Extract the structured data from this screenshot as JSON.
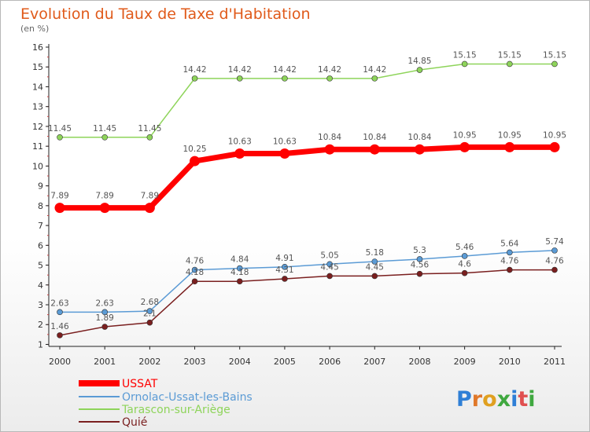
{
  "title": "Evolution du Taux de Taxe d'Habitation",
  "subtitle": "(en %)",
  "brand": {
    "letters": [
      "P",
      "r",
      "o",
      "x",
      "i",
      "t",
      "i"
    ],
    "colors": [
      "#2f7fd6",
      "#e0782a",
      "#e0a020",
      "#3fa83f",
      "#2f7fd6",
      "#e05050",
      "#3fa83f"
    ]
  },
  "chart_data": {
    "type": "line",
    "title": "Evolution du Taux de Taxe d'Habitation",
    "subtitle": "(en %)",
    "xlabel": "",
    "ylabel": "",
    "x": [
      "2000",
      "2001",
      "2002",
      "2003",
      "2004",
      "2005",
      "2006",
      "2007",
      "2008",
      "2009",
      "2010",
      "2011"
    ],
    "yticks": [
      "1",
      "2",
      "3",
      "4",
      "5",
      "6",
      "7",
      "8",
      "9",
      "10",
      "11",
      "12",
      "13",
      "14",
      "15",
      "16"
    ],
    "ylim": [
      0.9,
      16
    ],
    "grid": false,
    "legend_position": "bottom",
    "series": [
      {
        "name": "USSAT",
        "color": "#ff0000",
        "values": [
          7.89,
          7.89,
          7.89,
          10.25,
          10.63,
          10.63,
          10.84,
          10.84,
          10.84,
          10.95,
          10.95,
          10.95
        ],
        "labels": [
          "7.89",
          "7.89",
          "7.89",
          "10.25",
          "10.63",
          "10.63",
          "10.84",
          "10.84",
          "10.84",
          "10.95",
          "10.95",
          "10.95"
        ]
      },
      {
        "name": "Ornolac-Ussat-les-Bains",
        "color": "#5b9bd5",
        "values": [
          2.63,
          2.63,
          2.68,
          4.76,
          4.84,
          4.91,
          5.05,
          5.18,
          5.3,
          5.46,
          5.64,
          5.74
        ],
        "labels": [
          "2.63",
          "2.63",
          "2.68",
          "4.76",
          "4.84",
          "4.91",
          "5.05",
          "5.18",
          "5.3",
          "5.46",
          "5.64",
          "5.74"
        ]
      },
      {
        "name": "Tarascon-sur-Ariège",
        "color": "#8ed45a",
        "values": [
          11.45,
          11.45,
          11.45,
          14.42,
          14.42,
          14.42,
          14.42,
          14.42,
          14.85,
          15.15,
          15.15,
          15.15
        ],
        "labels": [
          "11.45",
          "11.45",
          "11.45",
          "14.42",
          "14.42",
          "14.42",
          "14.42",
          "14.42",
          "14.85",
          "15.15",
          "15.15",
          "15.15"
        ]
      },
      {
        "name": "Quié",
        "color": "#7a1f1f",
        "values": [
          1.46,
          1.89,
          2.1,
          4.18,
          4.18,
          4.31,
          4.45,
          4.45,
          4.56,
          4.6,
          4.76,
          4.76
        ],
        "labels": [
          "1.46",
          "1.89",
          "2.1",
          "4.18",
          "4.18",
          "4.31",
          "4.45",
          "4.45",
          "4.56",
          "4.6",
          "4.76",
          "4.76"
        ]
      }
    ]
  }
}
